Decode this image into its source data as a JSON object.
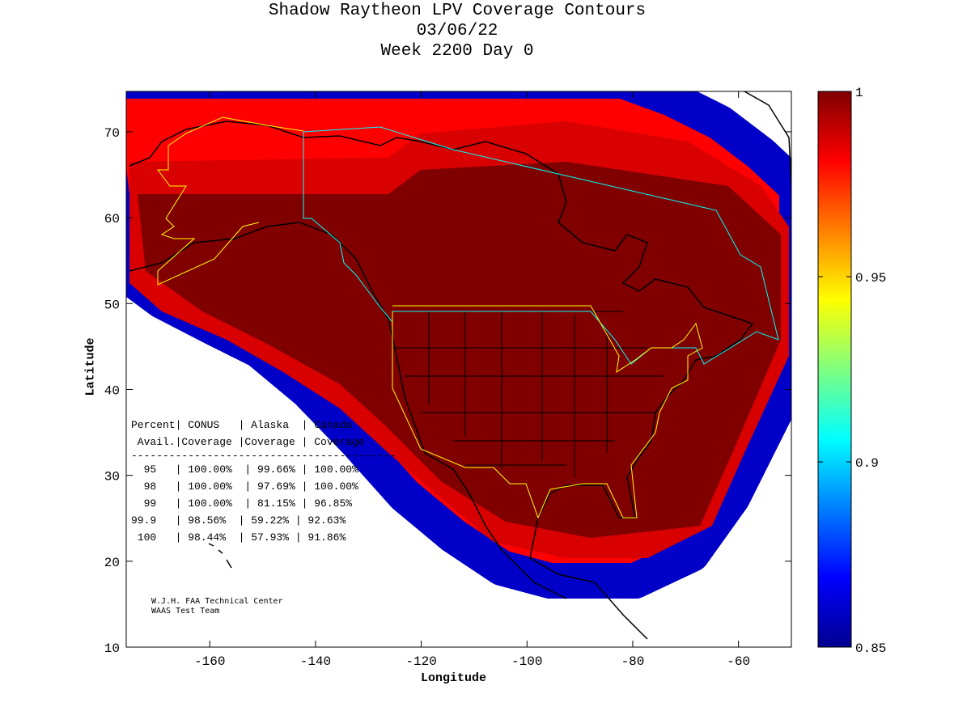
{
  "title": {
    "line1": "Shadow Raytheon LPV Coverage Contours",
    "line2": "03/06/22",
    "line3": "Week 2200 Day 0"
  },
  "chart_data": {
    "type": "heatmap",
    "xlabel": "Longitude",
    "ylabel": "Latitude",
    "xlim": [
      -175.8,
      -50
    ],
    "ylim": [
      10,
      74.7
    ],
    "xticks": [
      -160,
      -140,
      -120,
      -100,
      -80,
      -60
    ],
    "yticks": [
      10,
      20,
      30,
      40,
      50,
      60,
      70
    ],
    "colorbar": {
      "range": [
        0.85,
        1
      ],
      "ticks": [
        "0.85",
        "0.9",
        "0.95",
        "1"
      ],
      "colormap": "jet"
    },
    "grid": false
  },
  "table": {
    "header1": "Percent| CONUS   | Alaska  | Canada",
    "header2": " Avail.|Coverage |Coverage | Coverage",
    "separator": "------------------------------------------",
    "rows": [
      "  95   | 100.00%  | 99.66% | 100.00%",
      "  98   | 100.00%  | 97.69% | 100.00%",
      "  99   | 100.00%  | 81.15% | 96.85%",
      "99.9   | 98.56%  | 59.22% | 92.63%",
      " 100   | 98.44%  | 57.93% | 91.86%"
    ]
  },
  "credits": {
    "line1": "W.J.H. FAA Technical Center",
    "line2": "WAAS Test Team"
  },
  "colors": {
    "dark_red": "#800000",
    "red": "#ff0000",
    "yellow_border": "#ffff00",
    "cyan_border": "#00ffff"
  }
}
